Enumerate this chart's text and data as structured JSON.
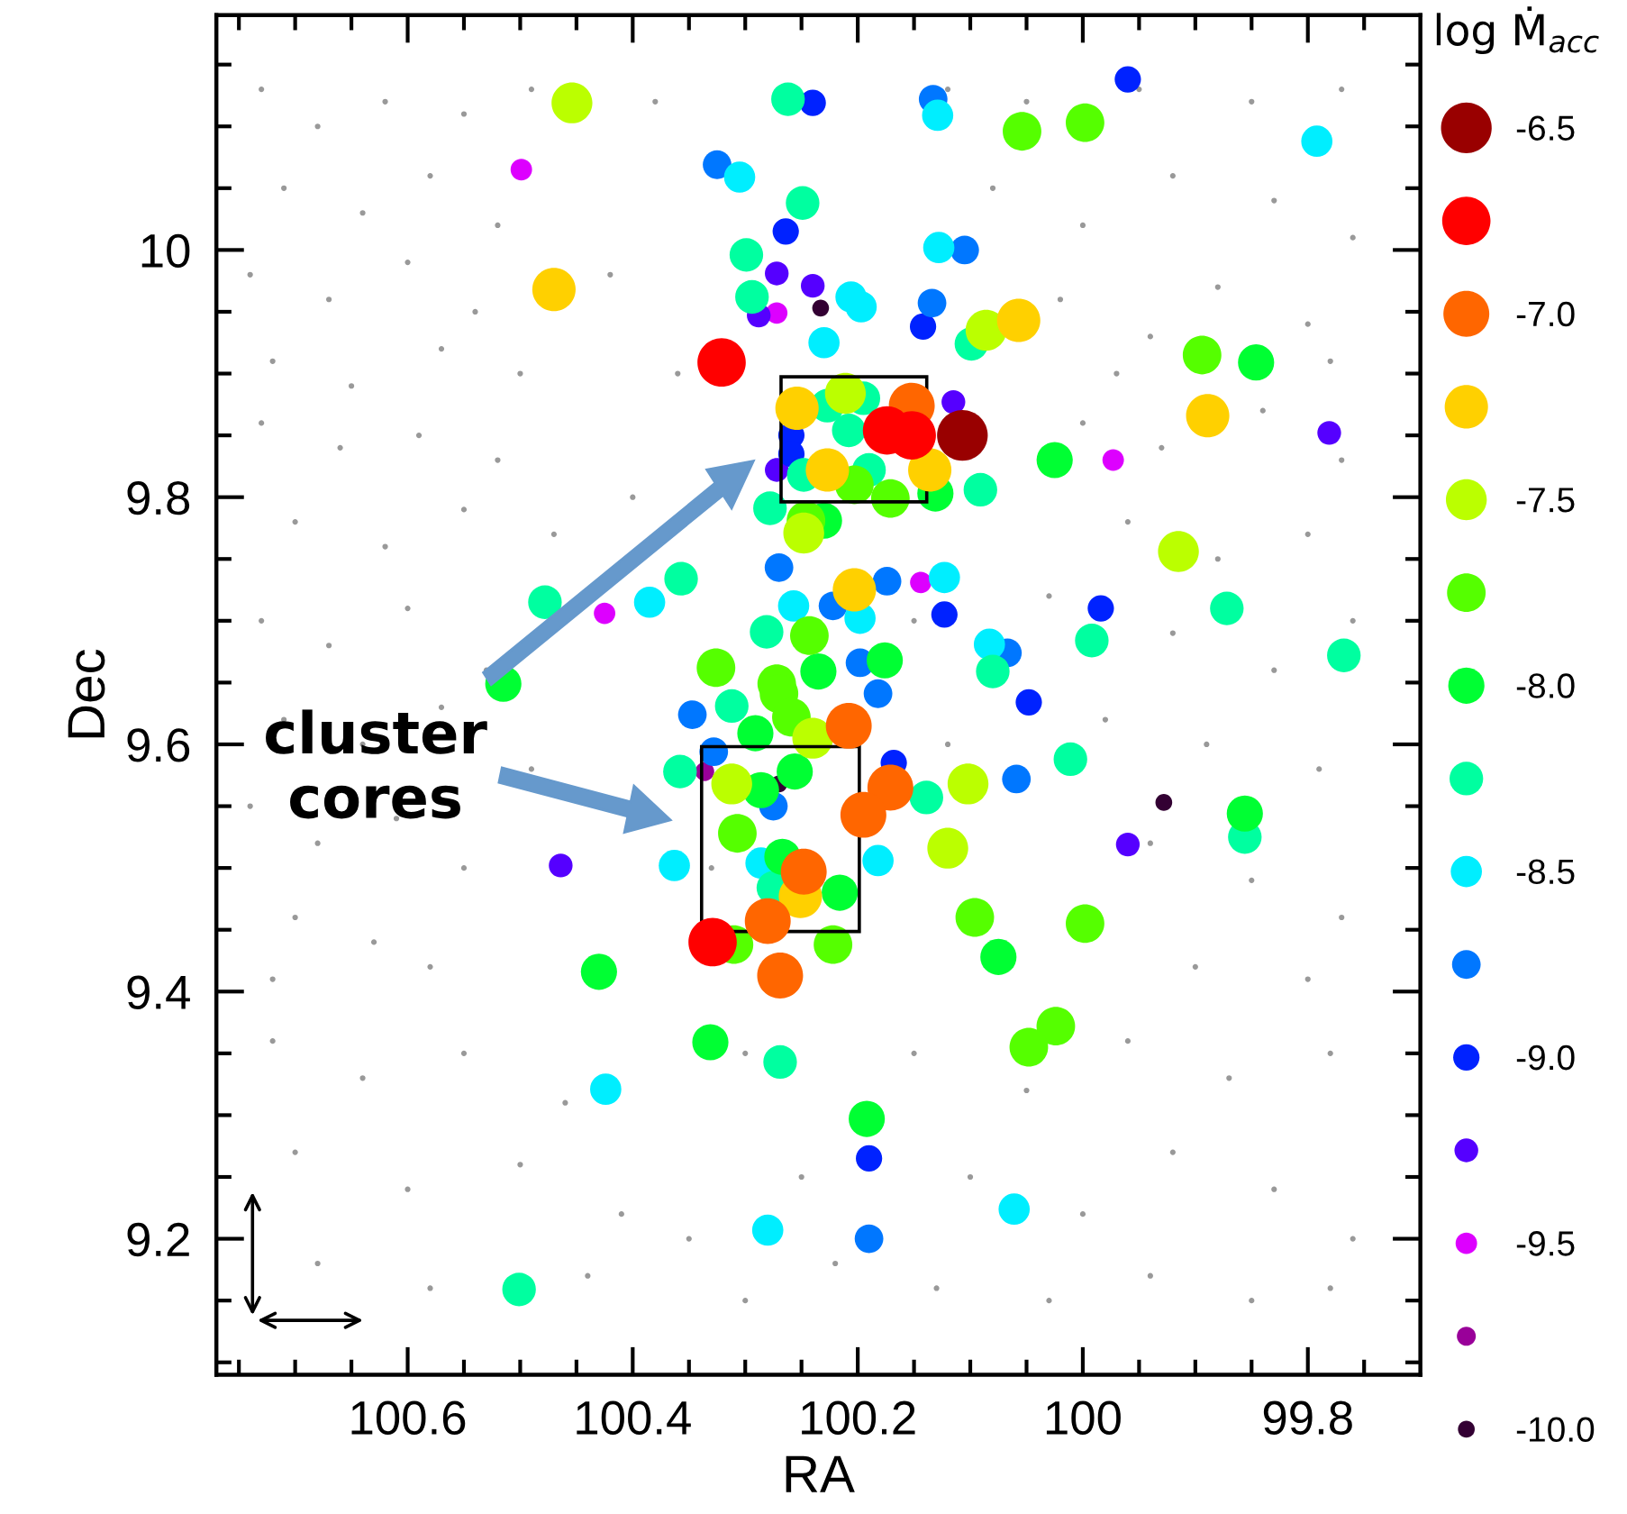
{
  "chart_data": {
    "type": "bubble",
    "xlabel": "RA",
    "ylabel": "Dec",
    "legend_title": "log Ṁ$_{acc}$",
    "legend": "right",
    "marker": "circle",
    "grid": false,
    "annotations": [
      "cluster\ncores"
    ],
    "xlim": [
      100.77,
      99.7
    ],
    "ylim": [
      9.09,
      10.19
    ],
    "xticks": [
      {
        "value": 100.75,
        "label": null
      },
      {
        "value": 100.7,
        "label": null
      },
      {
        "value": 100.65,
        "label": null
      },
      100.6,
      {
        "value": 100.55,
        "label": null
      },
      {
        "value": 100.5,
        "label": null
      },
      {
        "value": 100.45,
        "label": null
      },
      100.4,
      {
        "value": 100.35,
        "label": null
      },
      {
        "value": 100.3,
        "label": null
      },
      {
        "value": 100.25,
        "label": null
      },
      100.2,
      {
        "value": 100.15,
        "label": null
      },
      {
        "value": 100.1,
        "label": null
      },
      {
        "value": 100.05,
        "label": null
      },
      100,
      {
        "value": 99.95,
        "label": null
      },
      {
        "value": 99.9,
        "label": null
      },
      {
        "value": 99.85,
        "label": null
      },
      99.8,
      {
        "value": 99.75,
        "label": null
      }
    ],
    "yticks": [
      {
        "value": 9.1,
        "label": null
      },
      {
        "value": 9.15,
        "label": null
      },
      9.2,
      {
        "value": 9.25,
        "label": null
      },
      {
        "value": 9.3,
        "label": null
      },
      {
        "value": 9.35,
        "label": null
      },
      9.4,
      {
        "value": 9.45,
        "label": null
      },
      {
        "value": 9.5,
        "label": null
      },
      {
        "value": 9.55,
        "label": null
      },
      9.6,
      {
        "value": 9.65,
        "label": null
      },
      {
        "value": 9.7,
        "label": null
      },
      {
        "value": 9.75,
        "label": null
      },
      9.8,
      {
        "value": 9.85,
        "label": null
      },
      {
        "value": 9.9,
        "label": null
      },
      {
        "value": 9.95,
        "label": null
      },
      10,
      {
        "value": 10.05,
        "label": null
      },
      {
        "value": 10.1,
        "label": null
      },
      {
        "value": 10.15,
        "label": null
      }
    ],
    "series": [
      {
        "type": "scatter",
        "color": "#999999",
        "x": [
          100.73,
          100.68,
          100.62,
          100.55,
          100.49,
          100.71,
          100.64,
          100.58,
          100.52,
          100.74,
          100.67,
          100.6,
          100.54,
          100.72,
          100.65,
          100.57,
          100.5,
          100.73,
          100.66,
          100.59,
          100.52,
          100.7,
          100.62,
          100.55,
          100.47,
          100.73,
          100.67,
          100.6,
          100.53,
          100.71,
          100.64,
          100.57,
          100.49,
          100.74,
          100.68,
          100.61,
          100.55,
          100.7,
          100.63,
          100.72,
          100.58,
          100.72,
          100.64,
          100.55,
          100.46,
          100.7,
          100.6,
          100.5,
          100.41,
          100.68,
          100.58,
          100.44,
          100.35,
          100.3,
          100.25,
          100.22,
          100.42,
          100.36,
          100.38,
          100.4,
          100.33,
          100.15,
          100.12,
          100.3,
          100.12,
          100.05,
          99.95,
          99.85,
          99.77,
          100.08,
          100.0,
          99.92,
          99.83,
          99.76,
          100.02,
          99.94,
          99.88,
          99.8,
          99.97,
          99.78,
          100.0,
          99.93,
          99.84,
          99.77,
          99.96,
          99.88,
          99.8,
          100.03,
          99.92,
          99.83,
          99.76,
          99.98,
          99.89,
          99.79,
          99.94,
          99.85,
          99.77,
          99.9,
          99.8,
          100.15,
          100.05,
          99.96,
          99.87,
          99.78,
          100.1,
          100.0,
          99.92,
          99.83,
          99.76,
          100.13,
          100.03,
          99.94,
          99.85,
          99.78
        ],
        "values": [
          10.13,
          10.1,
          10.12,
          10.11,
          10.13,
          10.05,
          10.03,
          10.06,
          10.02,
          9.98,
          9.96,
          9.99,
          9.95,
          9.91,
          9.89,
          9.92,
          9.9,
          9.86,
          9.84,
          9.85,
          9.83,
          9.78,
          9.76,
          9.79,
          9.77,
          9.7,
          9.68,
          9.71,
          9.66,
          9.62,
          9.6,
          9.63,
          9.58,
          9.55,
          9.52,
          9.54,
          9.5,
          9.46,
          9.44,
          9.41,
          9.42,
          9.36,
          9.33,
          9.35,
          9.31,
          9.27,
          9.24,
          9.26,
          9.22,
          9.18,
          9.16,
          9.17,
          9.2,
          9.15,
          9.25,
          9.18,
          9.98,
          9.9,
          10.12,
          9.8,
          9.5,
          9.7,
          9.6,
          9.35,
          10.13,
          10.12,
          10.13,
          10.12,
          10.13,
          10.05,
          10.02,
          10.06,
          10.04,
          10.01,
          9.96,
          9.93,
          9.97,
          9.94,
          9.9,
          9.91,
          9.86,
          9.84,
          9.87,
          9.83,
          9.78,
          9.75,
          9.77,
          9.72,
          9.69,
          9.66,
          9.7,
          9.62,
          9.6,
          9.58,
          9.52,
          9.49,
          9.46,
          9.42,
          9.41,
          9.35,
          9.32,
          9.36,
          9.33,
          9.35,
          9.25,
          9.22,
          9.27,
          9.24,
          9.2,
          9.16,
          9.15,
          9.17,
          9.15,
          9.16
        ]
      },
      {
        "name": "-6.5",
        "color": "#990000",
        "x": [
          100.107
        ],
        "values": [
          9.85
        ],
        "sizes": [
          1
        ]
      },
      {
        "color": "#ff0000",
        "x": [
          100.321,
          100.174,
          100.152,
          100.329
        ],
        "values": [
          9.909,
          9.854,
          9.85,
          9.44
        ],
        "sizes": [
          0.91,
          0.91,
          0.91,
          0.91
        ]
      },
      {
        "name": "-7.0",
        "color": "#ff6600",
        "x": [
          100.152,
          100.171,
          100.195,
          100.269,
          100.208,
          100.248,
          100.28
        ],
        "values": [
          9.874,
          9.565,
          9.543,
          9.413,
          9.615,
          9.497,
          9.457
        ],
        "sizes": [
          0.82,
          0.82,
          0.82,
          0.82,
          0.82,
          0.82,
          0.82
        ]
      },
      {
        "color": "#ffd000",
        "x": [
          100.47,
          100.254,
          100.227,
          100.136,
          100.057,
          99.889,
          100.203,
          100.251
        ],
        "values": [
          9.968,
          9.872,
          9.822,
          9.822,
          9.943,
          9.866,
          9.725,
          9.477
        ],
        "sizes": [
          0.73,
          0.73,
          0.73,
          0.73,
          0.73,
          0.73,
          0.73,
          0.73
        ]
      },
      {
        "name": "-7.5",
        "color": "#bbff00",
        "x": [
          100.454,
          100.211,
          100.248,
          100.086,
          99.915,
          100.24,
          100.312,
          100.102,
          100.12
        ],
        "values": [
          10.119,
          9.884,
          9.771,
          9.935,
          9.756,
          9.605,
          9.568,
          9.568,
          9.516
        ],
        "sizes": [
          0.65,
          0.65,
          0.65,
          0.65,
          0.65,
          0.65,
          0.65,
          0.65,
          0.65
        ]
      },
      {
        "color": "#55ff00",
        "x": [
          100.054,
          99.998,
          99.894,
          100.326,
          100.272,
          100.171,
          100.203,
          100.246,
          100.243,
          100.27,
          100.259,
          100.307,
          100.31,
          100.222,
          100.096,
          99.998,
          100.024,
          100.048
        ],
        "values": [
          10.096,
          10.103,
          9.915,
          9.662,
          9.649,
          9.799,
          9.81,
          9.781,
          9.688,
          9.641,
          9.622,
          9.528,
          9.438,
          9.438,
          9.46,
          9.455,
          9.372,
          9.355
        ],
        "sizes": [
          0.58,
          0.58,
          0.58,
          0.58,
          0.58,
          0.58,
          0.58,
          0.58,
          0.58,
          0.58,
          0.58,
          0.58,
          0.58,
          0.58,
          0.58,
          0.58,
          0.58,
          0.58
        ]
      },
      {
        "name": "-8.0",
        "color": "#00ff33",
        "x": [
          100.515,
          99.846,
          100.025,
          100.131,
          100.23,
          100.235,
          100.176,
          100.291,
          100.286,
          100.256,
          100.267,
          100.216,
          100.075,
          100.43,
          100.331,
          99.856,
          100.192
        ],
        "values": [
          9.649,
          9.909,
          9.83,
          9.803,
          9.781,
          9.659,
          9.668,
          9.609,
          9.563,
          9.578,
          9.509,
          9.48,
          9.428,
          9.416,
          9.359,
          9.544,
          9.297
        ],
        "sizes": [
          0.51,
          0.51,
          0.51,
          0.51,
          0.51,
          0.51,
          0.51,
          0.51,
          0.51,
          0.51,
          0.51,
          0.51,
          0.51,
          0.51,
          0.51,
          0.51,
          0.51
        ]
      },
      {
        "color": "#00ffa0",
        "x": [
          100.262,
          100.249,
          100.299,
          100.294,
          100.478,
          100.357,
          100.281,
          100.227,
          100.195,
          100.208,
          100.248,
          100.19,
          100.091,
          100.278,
          100.099,
          100.08,
          100.312,
          100.358,
          100.139,
          100.275,
          99.872,
          99.768,
          99.992,
          100.011,
          99.856,
          100.269,
          100.501
        ],
        "values": [
          10.122,
          10.038,
          9.996,
          9.962,
          9.715,
          9.734,
          9.691,
          9.874,
          9.88,
          9.854,
          9.818,
          9.822,
          9.806,
          9.791,
          9.924,
          9.659,
          9.631,
          9.578,
          9.557,
          9.484,
          9.71,
          9.672,
          9.684,
          9.588,
          9.525,
          9.343,
          9.159
        ],
        "sizes": [
          0.44,
          0.44,
          0.44,
          0.44,
          0.44,
          0.44,
          0.44,
          0.44,
          0.44,
          0.44,
          0.44,
          0.44,
          0.44,
          0.44,
          0.44,
          0.44,
          0.44,
          0.44,
          0.44,
          0.44,
          0.44,
          0.44,
          0.44,
          0.44,
          0.44,
          0.44,
          0.44
        ]
      },
      {
        "name": "-8.5",
        "color": "#00eeff",
        "x": [
          100.305,
          100.23,
          100.385,
          100.257,
          100.129,
          99.792,
          100.128,
          100.206,
          100.197,
          100.123,
          100.198,
          100.083,
          100.275,
          100.363,
          100.286,
          100.182,
          100.424,
          100.28,
          100.061
        ],
        "values": [
          10.059,
          9.925,
          9.715,
          9.712,
          10.109,
          10.088,
          10.002,
          9.962,
          9.954,
          9.735,
          9.702,
          9.681,
          null,
          9.502,
          9.504,
          9.506,
          9.321,
          9.207,
          9.224
        ],
        "sizes": [
          0.38,
          0.38,
          0.38,
          0.38,
          0.38,
          0.38,
          0.38,
          0.38,
          0.38,
          0.38,
          0.38,
          0.38,
          null,
          0.38,
          0.38,
          0.38,
          0.38,
          0.38,
          0.38
        ]
      },
      {
        "color": "#0077ff",
        "x": [
          100.325,
          100.27,
          100.133,
          100.105,
          100.134,
          100.174,
          100.222,
          100.067,
          100.198,
          100.182,
          100.347,
          100.328,
          100.275,
          100.059,
          100.19
        ],
        "values": [
          10.069,
          9.743,
          10.122,
          10.0,
          9.957,
          9.732,
          9.712,
          9.674,
          9.666,
          9.641,
          9.624,
          9.594,
          9.55,
          9.572,
          9.2
        ],
        "sizes": [
          0.32,
          0.32,
          0.32,
          0.32,
          0.32,
          0.32,
          0.32,
          0.32,
          0.32,
          0.32,
          0.32,
          0.32,
          0.32,
          0.32,
          0.32
        ]
      },
      {
        "name": "-9.0",
        "color": "#0022ff",
        "x": [
          100.24,
          100.264,
          100.259,
          100.259,
          99.96,
          100.142,
          100.123,
          100.048,
          100.168,
          99.984,
          100.19
        ],
        "values": [
          10.119,
          10.015,
          9.85,
          9.835,
          10.138,
          9.938,
          9.705,
          9.634,
          9.585,
          9.71,
          9.265
        ],
        "sizes": [
          0.27,
          0.27,
          0.27,
          0.27,
          0.27,
          0.27,
          0.27,
          0.27,
          0.27,
          0.27,
          0.27
        ]
      },
      {
        "color": "#5500ff",
        "x": [
          100.272,
          100.24,
          100.288,
          100.272,
          100.115,
          99.781,
          100.464,
          99.96
        ],
        "values": [
          9.981,
          9.971,
          9.947,
          9.822,
          9.877,
          9.852,
          9.502,
          9.519
        ],
        "sizes": [
          0.22,
          0.22,
          0.22,
          0.22,
          0.22,
          0.22,
          0.22,
          0.22
        ]
      },
      {
        "name": "-9.5",
        "color": "#dd00ff",
        "x": [
          100.499,
          100.272,
          100.425,
          100.144,
          99.973
        ],
        "values": [
          10.065,
          9.949,
          9.706,
          9.731,
          9.83
        ],
        "sizes": [
          0.18,
          0.18,
          0.18,
          0.18,
          0.18
        ]
      },
      {
        "color": "#990099",
        "x": [
          100.336
        ],
        "values": [
          9.578
        ],
        "sizes": [
          0.14
        ]
      },
      {
        "name": "-10.0",
        "color": "#330033",
        "x": [
          100.233,
          99.928,
          100.27
        ],
        "values": [
          9.953,
          9.553,
          9.568
        ],
        "sizes": [
          0.11,
          0.11,
          0.11
        ]
      }
    ]
  }
}
